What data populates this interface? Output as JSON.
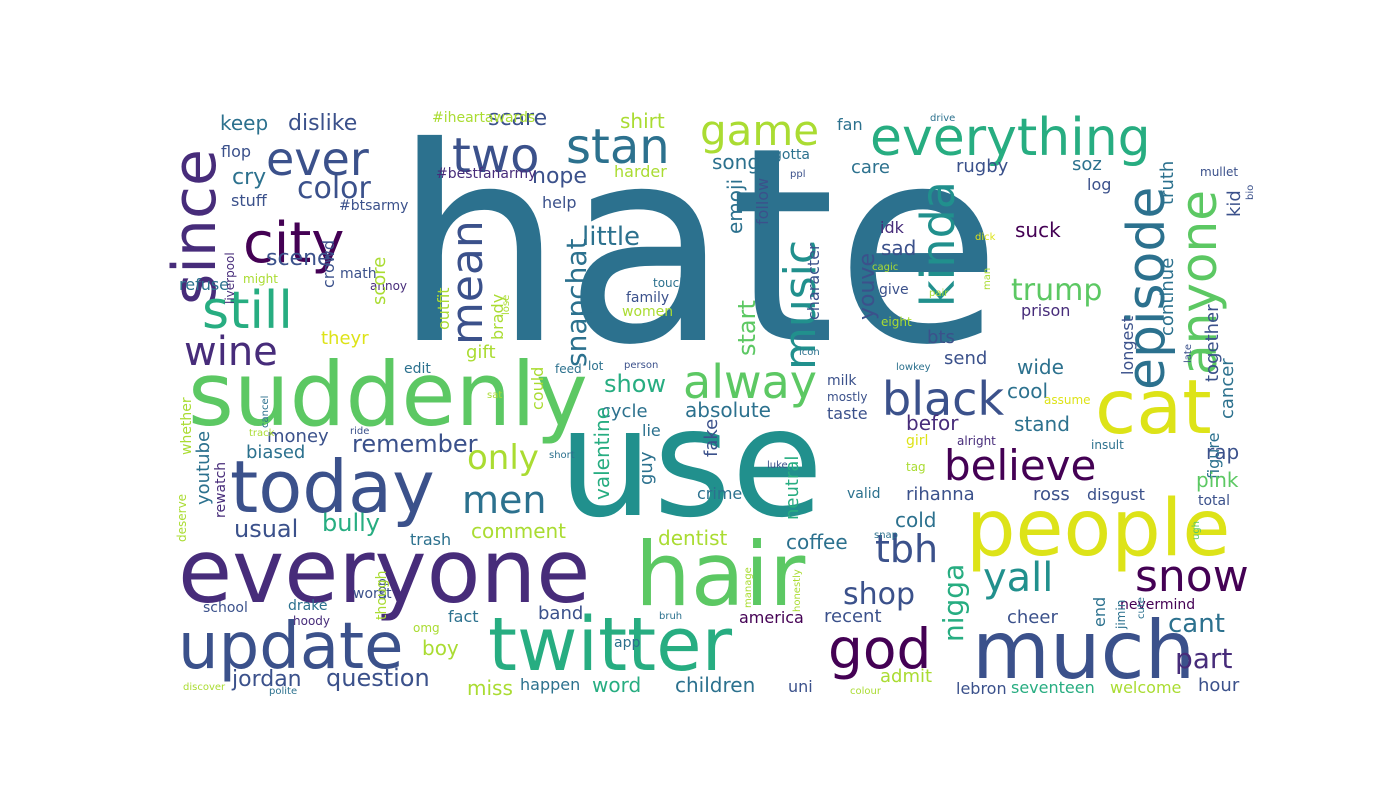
{
  "word_cloud": {
    "palette": {
      "dark_purple": "#440154",
      "purple": "#472c7a",
      "indigo": "#3b518b",
      "blue": "#2c718e",
      "teal": "#21908d",
      "sea_green": "#27ad81",
      "green": "#5cc863",
      "lime": "#aadc32",
      "yellow": "#dde318"
    },
    "words": [
      {
        "text": "hate",
        "color": "#2c718e"
      },
      {
        "text": "use",
        "color": "#21908d"
      },
      {
        "text": "suddenly",
        "color": "#5cc863"
      },
      {
        "text": "everyone",
        "color": "#472c7a"
      },
      {
        "text": "hair",
        "color": "#5cc863"
      },
      {
        "text": "people",
        "color": "#dde318"
      },
      {
        "text": "twitter",
        "color": "#27ad81"
      },
      {
        "text": "much",
        "color": "#3b518b"
      },
      {
        "text": "today",
        "color": "#3b518b"
      },
      {
        "text": "update",
        "color": "#3b518b"
      },
      {
        "text": "cat",
        "color": "#dde318"
      },
      {
        "text": "everything",
        "color": "#27ad81"
      },
      {
        "text": "two",
        "color": "#3b518b"
      },
      {
        "text": "stan",
        "color": "#2c718e"
      },
      {
        "text": "since",
        "color": "#472c7a"
      },
      {
        "text": "still",
        "color": "#27ad81"
      },
      {
        "text": "city",
        "color": "#440154"
      },
      {
        "text": "ever",
        "color": "#3b518b"
      },
      {
        "text": "game",
        "color": "#aadc32"
      },
      {
        "text": "black",
        "color": "#3b518b"
      },
      {
        "text": "believe",
        "color": "#440154"
      },
      {
        "text": "episode",
        "color": "#2c718e"
      },
      {
        "text": "anyone",
        "color": "#5cc863"
      },
      {
        "text": "kinda",
        "color": "#21908d"
      },
      {
        "text": "music",
        "color": "#21908d"
      },
      {
        "text": "mean",
        "color": "#3b518b"
      },
      {
        "text": "alway",
        "color": "#5cc863"
      },
      {
        "text": "god",
        "color": "#440154"
      },
      {
        "text": "wine",
        "color": "#472c7a"
      },
      {
        "text": "snow",
        "color": "#440154"
      },
      {
        "text": "yall",
        "color": "#21908d"
      },
      {
        "text": "tbh",
        "color": "#3b518b"
      },
      {
        "text": "men",
        "color": "#2c718e"
      },
      {
        "text": "only",
        "color": "#aadc32"
      },
      {
        "text": "trump",
        "color": "#5cc863"
      },
      {
        "text": "color",
        "color": "#3b518b"
      },
      {
        "text": "part",
        "color": "#472c7a"
      },
      {
        "text": "cant",
        "color": "#2c718e"
      },
      {
        "text": "shop",
        "color": "#3b518b"
      },
      {
        "text": "nigga",
        "color": "#27ad81"
      },
      {
        "text": "snapchat",
        "color": "#2c718e"
      },
      {
        "text": "little",
        "color": "#2c718e"
      },
      {
        "text": "show",
        "color": "#27ad81"
      },
      {
        "text": "remember",
        "color": "#3b518b"
      },
      {
        "text": "usual",
        "color": "#3b518b"
      },
      {
        "text": "bully",
        "color": "#27ad81"
      },
      {
        "text": "question",
        "color": "#3b518b"
      },
      {
        "text": "jordan",
        "color": "#3b518b"
      },
      {
        "text": "dislike",
        "color": "#3b518b"
      },
      {
        "text": "scene",
        "color": "#3b518b"
      },
      {
        "text": "cry",
        "color": "#2c718e"
      },
      {
        "text": "keep",
        "color": "#2c718e"
      },
      {
        "text": "scare",
        "color": "#3b518b"
      },
      {
        "text": "shirt",
        "color": "#aadc32"
      },
      {
        "text": "nope",
        "color": "#3b518b"
      },
      {
        "text": "song",
        "color": "#2c718e"
      },
      {
        "text": "emoji",
        "color": "#2c718e"
      },
      {
        "text": "youve",
        "color": "#3b518b"
      },
      {
        "text": "start",
        "color": "#5cc863"
      },
      {
        "text": "character",
        "color": "#3b518b"
      },
      {
        "text": "sad",
        "color": "#3b518b"
      },
      {
        "text": "idk",
        "color": "#472c7a"
      },
      {
        "text": "suck",
        "color": "#440154"
      },
      {
        "text": "continue",
        "color": "#2c718e"
      },
      {
        "text": "truth",
        "color": "#2c718e"
      },
      {
        "text": "together",
        "color": "#3b518b"
      },
      {
        "text": "cancer",
        "color": "#2c718e"
      },
      {
        "text": "kid",
        "color": "#3b518b"
      },
      {
        "text": "soz",
        "color": "#2c718e"
      },
      {
        "text": "log",
        "color": "#3b518b"
      },
      {
        "text": "care",
        "color": "#2c718e"
      },
      {
        "text": "rugby",
        "color": "#3b518b"
      },
      {
        "text": "fan",
        "color": "#2c718e"
      },
      {
        "text": "gotta",
        "color": "#2c718e"
      },
      {
        "text": "follow",
        "color": "#3b518b"
      },
      {
        "text": "harder",
        "color": "#aadc32"
      },
      {
        "text": "help",
        "color": "#3b518b"
      },
      {
        "text": "stuff",
        "color": "#3b518b"
      },
      {
        "text": "flop",
        "color": "#3b518b"
      },
      {
        "text": "#btsarmy",
        "color": "#3b518b"
      },
      {
        "text": "#bestfanarmy",
        "color": "#472c7a"
      },
      {
        "text": "refuse",
        "color": "#2c718e"
      },
      {
        "text": "crowd",
        "color": "#3b518b"
      },
      {
        "text": "math",
        "color": "#3b518b"
      },
      {
        "text": "liverpool",
        "color": "#472c7a"
      },
      {
        "text": "might",
        "color": "#aadc32"
      },
      {
        "text": "annoy",
        "color": "#472c7a"
      },
      {
        "text": "score",
        "color": "#aadc32"
      },
      {
        "text": "theyr",
        "color": "#dde318"
      },
      {
        "text": "gift",
        "color": "#aadc32"
      },
      {
        "text": "edit",
        "color": "#2c718e"
      },
      {
        "text": "outfit",
        "color": "#aadc32"
      },
      {
        "text": "brady",
        "color": "#aadc32"
      },
      {
        "text": "could",
        "color": "#aadc32"
      },
      {
        "text": "lose",
        "color": "#aadc32"
      },
      {
        "text": "feed",
        "color": "#2c718e"
      },
      {
        "text": "lot",
        "color": "#2c718e"
      },
      {
        "text": "person",
        "color": "#3b518b"
      },
      {
        "text": "family",
        "color": "#3b518b"
      },
      {
        "text": "women",
        "color": "#aadc32"
      },
      {
        "text": "touch",
        "color": "#2c718e"
      },
      {
        "text": "cycle",
        "color": "#2c718e"
      },
      {
        "text": "absolute",
        "color": "#2c718e"
      },
      {
        "text": "cool",
        "color": "#2c718e"
      },
      {
        "text": "wide",
        "color": "#2c718e"
      },
      {
        "text": "send",
        "color": "#3b518b"
      },
      {
        "text": "bts",
        "color": "#3b518b"
      },
      {
        "text": "give",
        "color": "#3b518b"
      },
      {
        "text": "prison",
        "color": "#472c7a"
      },
      {
        "text": "eight",
        "color": "#aadc32"
      },
      {
        "text": "cagic",
        "color": "#aadc32"
      },
      {
        "text": "icon",
        "color": "#2c718e"
      },
      {
        "text": "lowkey",
        "color": "#2c718e"
      },
      {
        "text": "milk",
        "color": "#3b518b"
      },
      {
        "text": "mostly",
        "color": "#3b518b"
      },
      {
        "text": "taste",
        "color": "#3b518b"
      },
      {
        "text": "befor",
        "color": "#472c7a"
      },
      {
        "text": "stand",
        "color": "#2c718e"
      },
      {
        "text": "longest",
        "color": "#3b518b"
      },
      {
        "text": "rap",
        "color": "#3b518b"
      },
      {
        "text": "figure",
        "color": "#2c718e"
      },
      {
        "text": "pink",
        "color": "#5cc863"
      },
      {
        "text": "total",
        "color": "#3b518b"
      },
      {
        "text": "disgust",
        "color": "#3b518b"
      },
      {
        "text": "ross",
        "color": "#3b518b"
      },
      {
        "text": "rihanna",
        "color": "#3b518b"
      },
      {
        "text": "valid",
        "color": "#2c718e"
      },
      {
        "text": "cold",
        "color": "#2c718e"
      },
      {
        "text": "tag",
        "color": "#aadc32"
      },
      {
        "text": "girl",
        "color": "#dde318"
      },
      {
        "text": "alright",
        "color": "#472c7a"
      },
      {
        "text": "insult",
        "color": "#2c718e"
      },
      {
        "text": "assume",
        "color": "#dde318"
      },
      {
        "text": "money",
        "color": "#3b518b"
      },
      {
        "text": "biased",
        "color": "#2c718e"
      },
      {
        "text": "youtube",
        "color": "#2c718e"
      },
      {
        "text": "rewatch",
        "color": "#472c7a"
      },
      {
        "text": "whether",
        "color": "#aadc32"
      },
      {
        "text": "deserve",
        "color": "#aadc32"
      },
      {
        "text": "cancel",
        "color": "#2c718e"
      },
      {
        "text": "track",
        "color": "#aadc32"
      },
      {
        "text": "ride",
        "color": "#3b518b"
      },
      {
        "text": "sat",
        "color": "#aadc32"
      },
      {
        "text": "short",
        "color": "#2c718e"
      },
      {
        "text": "valentine",
        "color": "#27ad81"
      },
      {
        "text": "fake",
        "color": "#3b518b"
      },
      {
        "text": "lie",
        "color": "#2c718e"
      },
      {
        "text": "guy",
        "color": "#2c718e"
      },
      {
        "text": "crime",
        "color": "#2c718e"
      },
      {
        "text": "neutral",
        "color": "#27ad81"
      },
      {
        "text": "luke",
        "color": "#3b518b"
      },
      {
        "text": "snap",
        "color": "#2c718e"
      },
      {
        "text": "comment",
        "color": "#aadc32"
      },
      {
        "text": "trash",
        "color": "#2c718e"
      },
      {
        "text": "dentist",
        "color": "#aadc32"
      },
      {
        "text": "coffee",
        "color": "#2c718e"
      },
      {
        "text": "band",
        "color": "#3b518b"
      },
      {
        "text": "fact",
        "color": "#2c718e"
      },
      {
        "text": "boy",
        "color": "#aadc32"
      },
      {
        "text": "miss",
        "color": "#aadc32"
      },
      {
        "text": "happen",
        "color": "#2c718e"
      },
      {
        "text": "word",
        "color": "#27ad81"
      },
      {
        "text": "children",
        "color": "#2c718e"
      },
      {
        "text": "uni",
        "color": "#3b518b"
      },
      {
        "text": "admit",
        "color": "#aadc32"
      },
      {
        "text": "america",
        "color": "#440154"
      },
      {
        "text": "recent",
        "color": "#3b518b"
      },
      {
        "text": "app",
        "color": "#2c718e"
      },
      {
        "text": "bruh",
        "color": "#2c718e"
      },
      {
        "text": "manage",
        "color": "#aadc32"
      },
      {
        "text": "honestly",
        "color": "#aadc32"
      },
      {
        "text": "colour",
        "color": "#aadc32"
      },
      {
        "text": "lebron",
        "color": "#3b518b"
      },
      {
        "text": "seventeen",
        "color": "#27ad81"
      },
      {
        "text": "welcome",
        "color": "#aadc32"
      },
      {
        "text": "hour",
        "color": "#3b518b"
      },
      {
        "text": "cheer",
        "color": "#3b518b"
      },
      {
        "text": "nevermind",
        "color": "#440154"
      },
      {
        "text": "end",
        "color": "#2c718e"
      },
      {
        "text": "jimin",
        "color": "#2c718e"
      },
      {
        "text": "cute",
        "color": "#2c718e"
      },
      {
        "text": "ugh",
        "color": "#5cc863"
      },
      {
        "text": "cop",
        "color": "#3b518b"
      },
      {
        "text": "worst",
        "color": "#3b518b"
      },
      {
        "text": "school",
        "color": "#3b518b"
      },
      {
        "text": "drake",
        "color": "#2c718e"
      },
      {
        "text": "hoody",
        "color": "#472c7a"
      },
      {
        "text": "omg",
        "color": "#aadc32"
      },
      {
        "text": "though",
        "color": "#aadc32"
      },
      {
        "text": "discover",
        "color": "#aadc32"
      },
      {
        "text": "polite",
        "color": "#2c718e"
      },
      {
        "text": "#iheartawards",
        "color": "#aadc32"
      },
      {
        "text": "drive",
        "color": "#2c718e"
      },
      {
        "text": "pair",
        "color": "#aadc32"
      },
      {
        "text": "man",
        "color": "#aadc32"
      },
      {
        "text": "dick",
        "color": "#dde318"
      },
      {
        "text": "ppl",
        "color": "#3b518b"
      },
      {
        "text": "mullet",
        "color": "#3b518b"
      },
      {
        "text": "bio",
        "color": "#3b518b"
      },
      {
        "text": "late",
        "color": "#3b518b"
      }
    ]
  }
}
